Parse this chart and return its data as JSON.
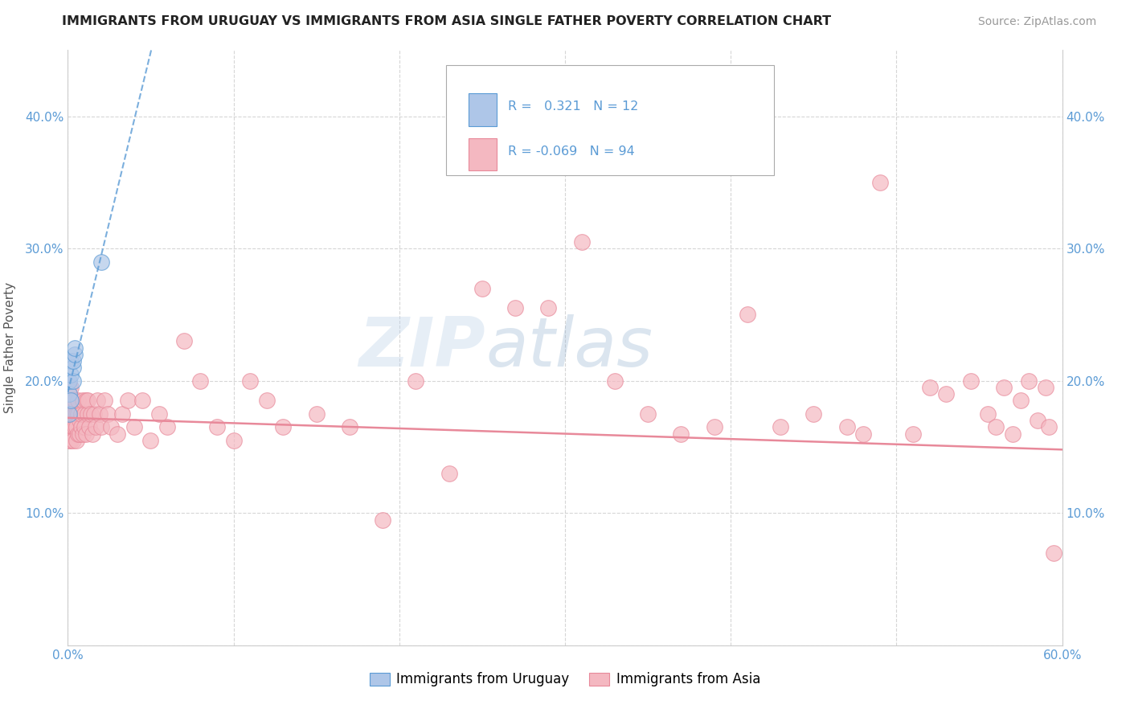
{
  "title": "IMMIGRANTS FROM URUGUAY VS IMMIGRANTS FROM ASIA SINGLE FATHER POVERTY CORRELATION CHART",
  "source": "Source: ZipAtlas.com",
  "ylabel": "Single Father Poverty",
  "xlim": [
    0.0,
    0.6
  ],
  "ylim": [
    0.0,
    0.45
  ],
  "xticks": [
    0.0,
    0.1,
    0.2,
    0.3,
    0.4,
    0.5,
    0.6
  ],
  "xticklabels": [
    "0.0%",
    "",
    "",
    "",
    "",
    "",
    "60.0%"
  ],
  "yticks": [
    0.0,
    0.1,
    0.2,
    0.3,
    0.4
  ],
  "yticklabels_left": [
    "",
    "10.0%",
    "20.0%",
    "30.0%",
    "40.0%"
  ],
  "yticklabels_right": [
    "",
    "10.0%",
    "20.0%",
    "30.0%",
    "40.0%"
  ],
  "r_uruguay": 0.321,
  "n_uruguay": 12,
  "r_asia": -0.069,
  "n_asia": 94,
  "color_uruguay_fill": "#aec6e8",
  "color_uruguay_edge": "#5b9bd5",
  "color_asia_fill": "#f4b8c1",
  "color_asia_edge": "#e8899a",
  "color_uruguay_line": "#5b9bd5",
  "color_asia_line": "#e8899a",
  "legend_label_uruguay": "Immigrants from Uruguay",
  "legend_label_asia": "Immigrants from Asia",
  "background_color": "#ffffff",
  "grid_color": "#cccccc",
  "tick_color": "#5b9bd5",
  "watermark_text": "ZIPatlas",
  "uruguay_x": [
    0.001,
    0.001,
    0.001,
    0.002,
    0.002,
    0.002,
    0.003,
    0.003,
    0.003,
    0.004,
    0.004,
    0.02
  ],
  "uruguay_y": [
    0.175,
    0.19,
    0.2,
    0.185,
    0.205,
    0.215,
    0.2,
    0.21,
    0.215,
    0.22,
    0.225,
    0.29
  ],
  "asia_x": [
    0.001,
    0.001,
    0.001,
    0.001,
    0.001,
    0.002,
    0.002,
    0.002,
    0.002,
    0.002,
    0.003,
    0.003,
    0.003,
    0.003,
    0.004,
    0.004,
    0.004,
    0.005,
    0.005,
    0.005,
    0.006,
    0.006,
    0.006,
    0.007,
    0.007,
    0.008,
    0.008,
    0.009,
    0.009,
    0.01,
    0.01,
    0.011,
    0.011,
    0.012,
    0.012,
    0.013,
    0.014,
    0.015,
    0.016,
    0.017,
    0.018,
    0.019,
    0.02,
    0.022,
    0.024,
    0.026,
    0.03,
    0.033,
    0.036,
    0.04,
    0.045,
    0.05,
    0.055,
    0.06,
    0.07,
    0.08,
    0.09,
    0.1,
    0.11,
    0.12,
    0.13,
    0.15,
    0.17,
    0.19,
    0.21,
    0.23,
    0.25,
    0.27,
    0.29,
    0.31,
    0.33,
    0.35,
    0.37,
    0.39,
    0.41,
    0.43,
    0.45,
    0.47,
    0.49,
    0.51,
    0.53,
    0.545,
    0.555,
    0.56,
    0.565,
    0.57,
    0.575,
    0.58,
    0.585,
    0.59,
    0.592,
    0.595,
    0.52,
    0.48
  ],
  "asia_y": [
    0.175,
    0.185,
    0.165,
    0.155,
    0.195,
    0.175,
    0.165,
    0.155,
    0.185,
    0.195,
    0.165,
    0.175,
    0.185,
    0.155,
    0.175,
    0.165,
    0.185,
    0.155,
    0.175,
    0.165,
    0.16,
    0.175,
    0.185,
    0.17,
    0.16,
    0.165,
    0.175,
    0.185,
    0.16,
    0.175,
    0.165,
    0.185,
    0.16,
    0.175,
    0.185,
    0.165,
    0.175,
    0.16,
    0.175,
    0.165,
    0.185,
    0.175,
    0.165,
    0.185,
    0.175,
    0.165,
    0.16,
    0.175,
    0.185,
    0.165,
    0.185,
    0.155,
    0.175,
    0.165,
    0.23,
    0.2,
    0.165,
    0.155,
    0.2,
    0.185,
    0.165,
    0.175,
    0.165,
    0.095,
    0.2,
    0.13,
    0.27,
    0.255,
    0.255,
    0.305,
    0.2,
    0.175,
    0.16,
    0.165,
    0.25,
    0.165,
    0.175,
    0.165,
    0.35,
    0.16,
    0.19,
    0.2,
    0.175,
    0.165,
    0.195,
    0.16,
    0.185,
    0.2,
    0.17,
    0.195,
    0.165,
    0.07,
    0.195,
    0.16
  ],
  "asia_trend_x0": 0.0,
  "asia_trend_y0": 0.172,
  "asia_trend_x1": 0.6,
  "asia_trend_y1": 0.148
}
